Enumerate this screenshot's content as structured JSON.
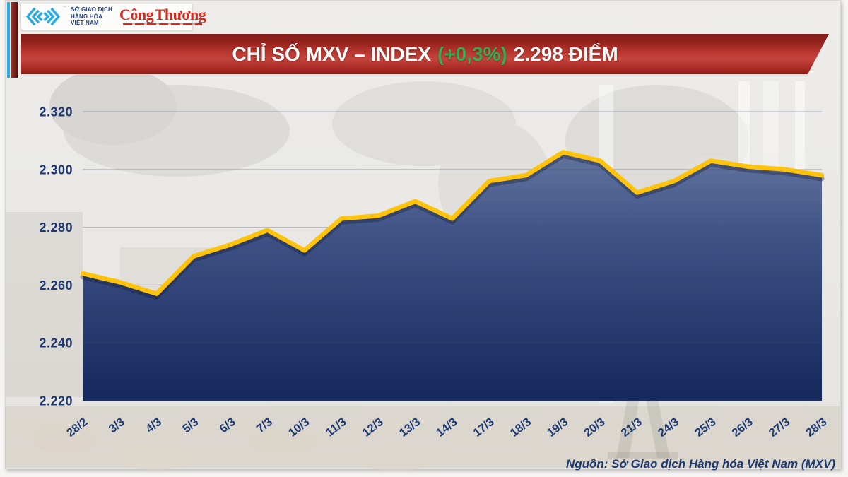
{
  "header": {
    "mxv_org": [
      "SỞ GIAO DỊCH",
      "HÀNG HÓA",
      "VIỆT NAM"
    ],
    "mxv_trademark": "™",
    "congthuong": "Công Thương"
  },
  "banner": {
    "title_prefix": "CHỈ SỐ MXV – INDEX",
    "change": "(+0,3%)",
    "title_suffix": "2.298 ĐIỂM"
  },
  "chart_data": {
    "type": "area",
    "title": "CHỈ SỐ MXV – INDEX (+0,3%) 2.298 ĐIỂM",
    "categories": [
      "28/2",
      "3/3",
      "4/3",
      "5/3",
      "6/3",
      "7/3",
      "10/3",
      "11/3",
      "12/3",
      "13/3",
      "14/3",
      "17/3",
      "18/3",
      "19/3",
      "20/3",
      "21/3",
      "24/3",
      "25/3",
      "26/3",
      "27/3",
      "28/3"
    ],
    "values": [
      2264,
      2261,
      2257,
      2270,
      2274,
      2279,
      2272,
      2283,
      2284,
      2289,
      2283,
      2296,
      2298,
      2306,
      2303,
      2292,
      2296,
      2303,
      2301,
      2300,
      2298
    ],
    "xlabel": "",
    "ylabel": "",
    "ylim": [
      2220,
      2320
    ],
    "yticks": [
      2320,
      2300,
      2280,
      2260,
      2240,
      2220
    ],
    "ytick_labels": [
      "2.320",
      "2.300",
      "2.280",
      "2.260",
      "2.240",
      "2.220"
    ],
    "grid": true,
    "legend": false,
    "line_color": "#FFC30B",
    "line_shadow": "rgba(20,25,45,0.35)",
    "area_gradient": [
      "#7485ab",
      "#3f5387",
      "#14285d"
    ],
    "label_color": "#1e3a74"
  },
  "footer": {
    "source": "Nguồn: Sở Giao dịch Hàng hóa Việt Nam (MXV)"
  },
  "colors": {
    "banner_red": "#b5342d",
    "change_green": "#2fae52",
    "accent_cyan": "#29abe2",
    "maroon_stripe": "#7c241b",
    "congthuong_red": "#d5281e",
    "axis_navy": "#1e3a74"
  }
}
